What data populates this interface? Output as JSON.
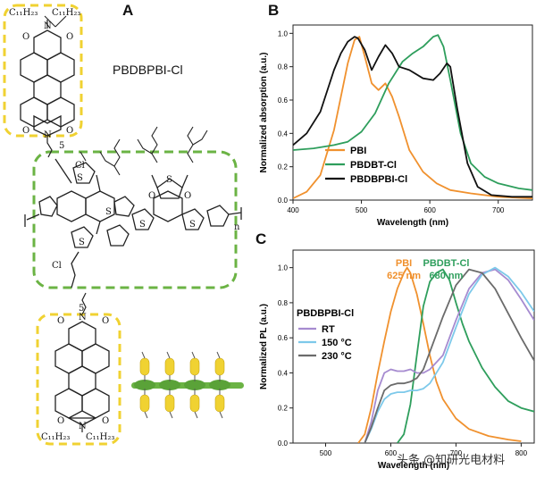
{
  "panel_labels": {
    "a": "A",
    "b": "B",
    "c": "C"
  },
  "molecule": {
    "name": "PBDBPBI-Cl",
    "alkyl_left": "C₁₁H₂₃",
    "alkyl_right": "C₁₁H₂₃",
    "o": "O",
    "n": "N",
    "s": "S",
    "cl": "Cl",
    "spacer": "5",
    "repeat": "n"
  },
  "watermark": "头条 @知研光电材料",
  "colors": {
    "orange": "#f0912e",
    "green": "#2e9e5c",
    "black": "#111111",
    "purple": "#a68bd0",
    "lightblue": "#7dc9ea",
    "gray": "#6b6b6b",
    "yellow": "#f0d232",
    "green_box": "#6bb344"
  },
  "chart_data": [
    {
      "type": "line",
      "xlabel": "Wavelength (nm)",
      "ylabel": "Normalized absorption (a.u.)",
      "xlim": [
        400,
        750
      ],
      "ylim": [
        0,
        1.05
      ],
      "xticks": [
        400,
        500,
        600,
        700
      ],
      "yticks": [
        "0.0",
        "0.2",
        "0.4",
        "0.6",
        "0.8",
        "1.0"
      ],
      "legend_position": "bottom-left",
      "series": [
        {
          "name": "PBI",
          "color": "#f0912e",
          "x": [
            400,
            420,
            440,
            460,
            470,
            480,
            490,
            497,
            505,
            515,
            525,
            535,
            545,
            555,
            570,
            590,
            610,
            630,
            660,
            700,
            750
          ],
          "y": [
            0.01,
            0.05,
            0.15,
            0.42,
            0.62,
            0.82,
            0.96,
            0.98,
            0.86,
            0.7,
            0.66,
            0.7,
            0.62,
            0.5,
            0.3,
            0.17,
            0.1,
            0.06,
            0.04,
            0.02,
            0.01
          ]
        },
        {
          "name": "PBDBT-Cl",
          "color": "#2e9e5c",
          "x": [
            400,
            430,
            460,
            480,
            500,
            520,
            540,
            560,
            575,
            590,
            605,
            612,
            620,
            630,
            645,
            660,
            680,
            700,
            730,
            750
          ],
          "y": [
            0.3,
            0.31,
            0.33,
            0.35,
            0.41,
            0.52,
            0.7,
            0.83,
            0.88,
            0.92,
            0.98,
            0.99,
            0.92,
            0.72,
            0.4,
            0.22,
            0.14,
            0.1,
            0.07,
            0.06
          ]
        },
        {
          "name": "PBDBPBI-Cl",
          "color": "#111111",
          "x": [
            400,
            420,
            440,
            460,
            470,
            480,
            490,
            495,
            505,
            515,
            525,
            535,
            545,
            555,
            570,
            590,
            605,
            615,
            625,
            630,
            640,
            655,
            670,
            690,
            720,
            750
          ],
          "y": [
            0.33,
            0.4,
            0.53,
            0.78,
            0.88,
            0.95,
            0.98,
            0.97,
            0.9,
            0.78,
            0.86,
            0.93,
            0.88,
            0.8,
            0.78,
            0.73,
            0.72,
            0.76,
            0.82,
            0.8,
            0.55,
            0.22,
            0.08,
            0.03,
            0.02,
            0.02
          ]
        }
      ]
    },
    {
      "type": "line",
      "xlabel": "Wavelength (nm)",
      "ylabel": "Normalized PL (a.u.)",
      "xlim": [
        450,
        820
      ],
      "ylim": [
        0,
        1.1
      ],
      "xticks": [
        500,
        600,
        700,
        800
      ],
      "yticks": [
        "0.0",
        "0.2",
        "0.4",
        "0.6",
        "0.8",
        "1.0"
      ],
      "annotations": [
        {
          "text": "PBI",
          "color": "#f0912e"
        },
        {
          "text": "625 nm",
          "color": "#f0912e"
        },
        {
          "text": "PBDBT-Cl",
          "color": "#2e9e5c"
        },
        {
          "text": "680 nm",
          "color": "#2e9e5c"
        }
      ],
      "legend_title": "PBDBPBI-Cl",
      "legend_position": "left",
      "series": [
        {
          "name": "PBI",
          "color": "#f0912e",
          "x": [
            550,
            560,
            570,
            580,
            590,
            600,
            610,
            620,
            625,
            630,
            640,
            650,
            660,
            670,
            680,
            700,
            720,
            750,
            780,
            800
          ],
          "y": [
            0.0,
            0.05,
            0.2,
            0.4,
            0.58,
            0.75,
            0.88,
            0.97,
            1.0,
            0.97,
            0.85,
            0.68,
            0.5,
            0.35,
            0.25,
            0.14,
            0.08,
            0.04,
            0.02,
            0.01
          ]
        },
        {
          "name": "PBDBT-Cl",
          "color": "#2e9e5c",
          "x": [
            610,
            620,
            630,
            640,
            650,
            660,
            670,
            680,
            690,
            700,
            710,
            720,
            740,
            760,
            780,
            800,
            820
          ],
          "y": [
            0.0,
            0.05,
            0.22,
            0.5,
            0.78,
            0.92,
            0.97,
            0.99,
            0.93,
            0.8,
            0.68,
            0.58,
            0.43,
            0.32,
            0.24,
            0.2,
            0.18
          ]
        },
        {
          "name": "RT",
          "color": "#a68bd0",
          "x": [
            560,
            570,
            580,
            590,
            600,
            610,
            620,
            630,
            640,
            650,
            660,
            680,
            700,
            720,
            740,
            760,
            780,
            800,
            820
          ],
          "y": [
            0.0,
            0.12,
            0.3,
            0.4,
            0.42,
            0.41,
            0.41,
            0.42,
            0.4,
            0.4,
            0.42,
            0.5,
            0.7,
            0.88,
            0.97,
            0.99,
            0.93,
            0.82,
            0.7
          ]
        },
        {
          "name": "150 °C",
          "color": "#7dc9ea",
          "x": [
            560,
            570,
            580,
            590,
            600,
            610,
            620,
            630,
            640,
            650,
            660,
            680,
            700,
            720,
            740,
            760,
            780,
            800,
            820
          ],
          "y": [
            0.0,
            0.08,
            0.18,
            0.25,
            0.28,
            0.29,
            0.29,
            0.3,
            0.3,
            0.31,
            0.34,
            0.46,
            0.66,
            0.85,
            0.96,
            1.0,
            0.95,
            0.86,
            0.75
          ]
        },
        {
          "name": "230 °C",
          "color": "#6b6b6b",
          "x": [
            560,
            570,
            580,
            590,
            600,
            610,
            620,
            630,
            640,
            650,
            660,
            680,
            700,
            720,
            740,
            760,
            780,
            800,
            820
          ],
          "y": [
            0.0,
            0.09,
            0.2,
            0.3,
            0.33,
            0.34,
            0.34,
            0.35,
            0.37,
            0.42,
            0.52,
            0.72,
            0.9,
            0.99,
            0.97,
            0.88,
            0.74,
            0.6,
            0.47
          ]
        }
      ]
    }
  ]
}
